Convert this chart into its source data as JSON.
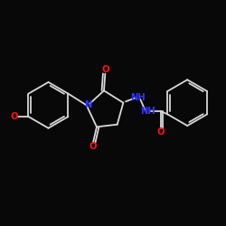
{
  "background_color": "#080808",
  "bond_color": "#d8d8d8",
  "atom_colors": {
    "N": "#3333ff",
    "O": "#ff1111",
    "C": "#d8d8d8"
  },
  "lw": 1.3,
  "fs": 7.2
}
